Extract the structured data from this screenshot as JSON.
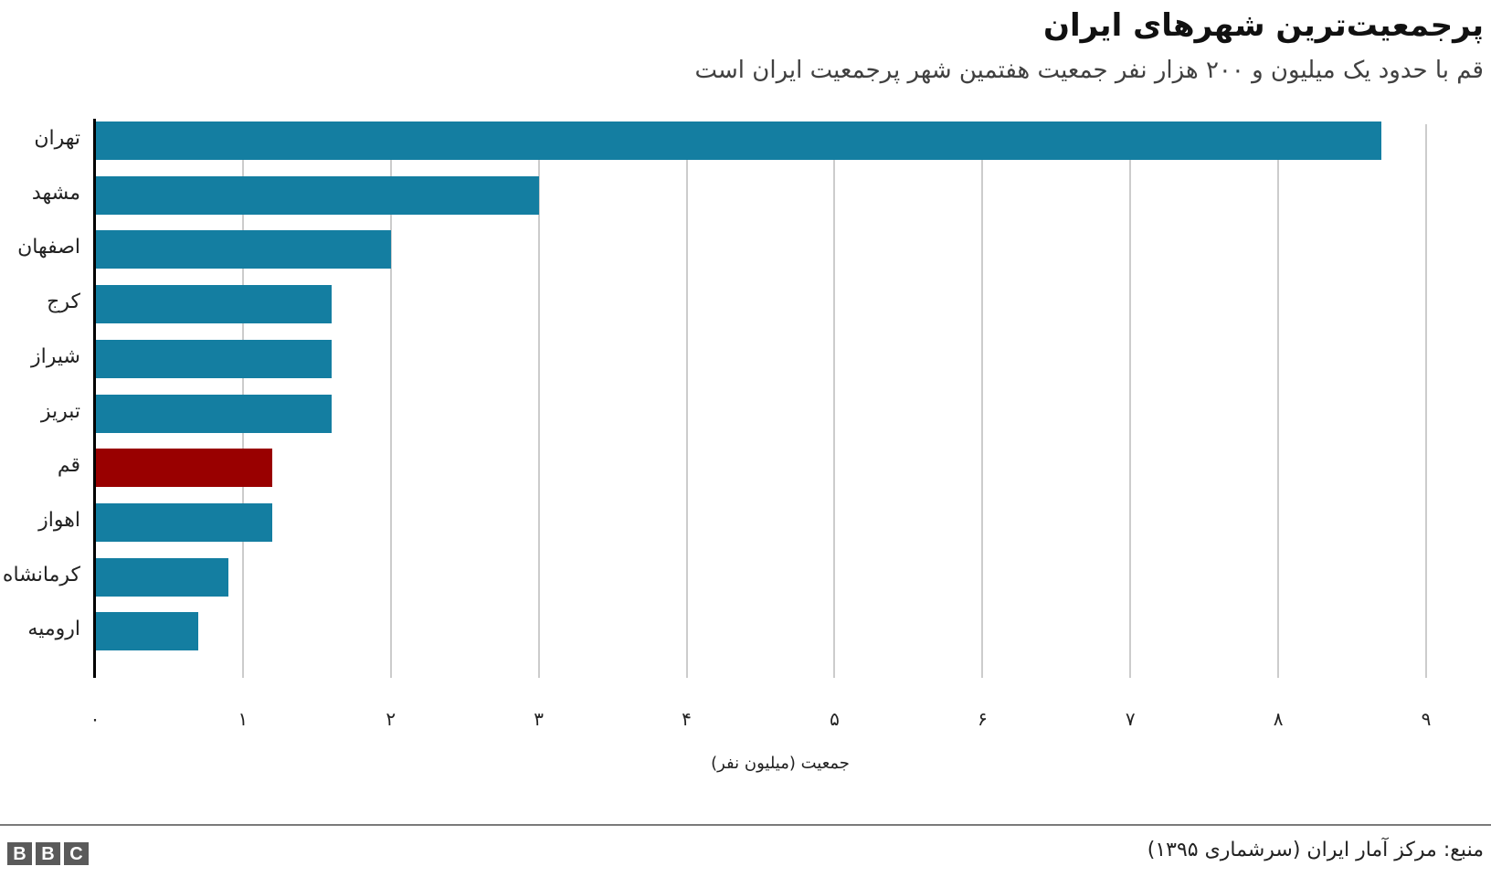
{
  "header": {
    "title": "پرجمعیت‌ترین شهرهای ایران",
    "subtitle": "قم با حدود یک میلیون و ۲۰۰ هزار نفر جمعیت هفتمین شهر پرجمعیت ایران است"
  },
  "colors": {
    "default_bar": "#147ea1",
    "highlight_bar": "#990000",
    "grid": "#cccccc",
    "axis": "#000000"
  },
  "footer": {
    "source": "منبع: مرکز آمار ایران (سرشماری ۱۳۹۵)",
    "logo": [
      "B",
      "B",
      "C"
    ]
  },
  "chart_data": {
    "type": "bar",
    "orientation": "horizontal",
    "title": "پرجمعیت‌ترین شهرهای ایران",
    "subtitle": "قم با حدود یک میلیون و ۲۰۰ هزار نفر جمعیت هفتمین شهر پرجمعیت ایران است",
    "xlabel": "جمعیت (میلیون نفر)",
    "ylabel": "",
    "categories": [
      "تهران",
      "مشهد",
      "اصفهان",
      "کرج",
      "شیراز",
      "تبریز",
      "قم",
      "اهواز",
      "کرمانشاه",
      "ارومیه"
    ],
    "values": [
      8.7,
      3.0,
      2.0,
      1.6,
      1.6,
      1.6,
      1.2,
      1.2,
      0.9,
      0.7
    ],
    "highlight": [
      "قم"
    ],
    "xlim": [
      0,
      9
    ],
    "xticks": [
      0,
      1,
      2,
      3,
      4,
      5,
      6,
      7,
      8,
      9
    ],
    "xtick_labels": [
      "۰",
      "۱",
      "۲",
      "۳",
      "۴",
      "۵",
      "۶",
      "۷",
      "۸",
      "۹"
    ],
    "grid": true,
    "legend": null,
    "source": "منبع: مرکز آمار ایران (سرشماری ۱۳۹۵)"
  }
}
